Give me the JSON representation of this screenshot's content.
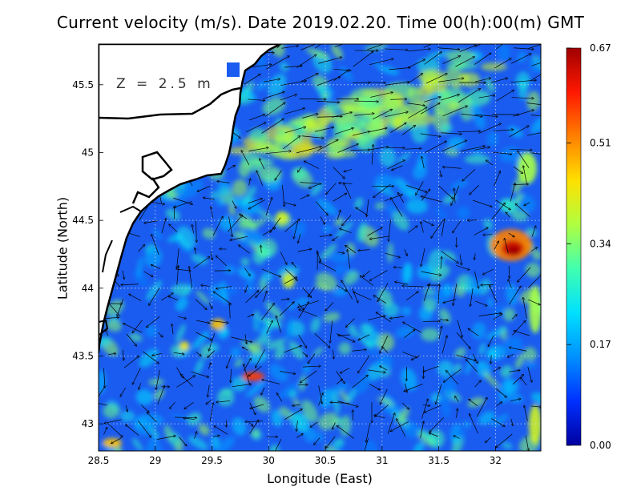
{
  "title": "Current velocity (m/s). Date 2019.02.20. Time 00(h):00(m) GMT",
  "depth_label": "Z = 2.5 m",
  "xlabel": "Longitude (East)",
  "ylabel": "Latitude (North)",
  "map": {
    "lon_range": [
      28.5,
      32.4
    ],
    "lat_range": [
      42.8,
      45.8
    ],
    "x_ticks": [
      "28.5",
      "29",
      "29.5",
      "30",
      "30.5",
      "31",
      "31.5",
      "32"
    ],
    "x_tick_values": [
      28.5,
      29,
      29.5,
      30,
      30.5,
      31,
      31.5,
      32
    ],
    "y_ticks": [
      "43",
      "43.5",
      "44",
      "44.5",
      "45",
      "45.5"
    ],
    "y_tick_values": [
      43,
      43.5,
      44,
      44.5,
      45,
      45.5
    ],
    "grid": "dotted",
    "coastline_color": "#000000",
    "land_color": "#ffffff"
  },
  "colorbar": {
    "min": 0.0,
    "max": 0.67,
    "tick_labels": [
      "0.67",
      "0.51",
      "0.34",
      "0.17",
      "0.00"
    ],
    "tick_values": [
      0.67,
      0.51,
      0.34,
      0.17,
      0.0
    ],
    "colors": [
      "#0000a0",
      "#0030ff",
      "#0090ff",
      "#00e0ff",
      "#40ffb0",
      "#b0ff40",
      "#ffe000",
      "#ff8000",
      "#ff1800",
      "#a00000"
    ]
  }
}
